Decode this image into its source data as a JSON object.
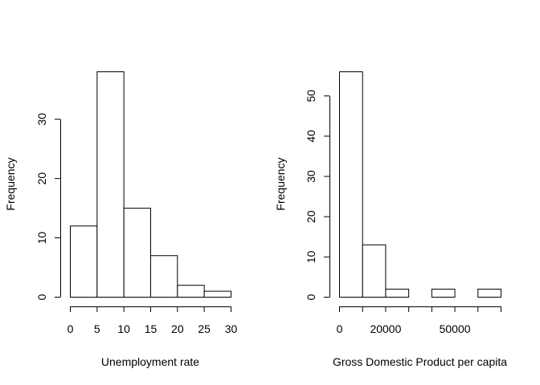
{
  "chart_data": [
    {
      "type": "bar",
      "title": "",
      "xlabel": "Unemployment rate",
      "ylabel": "Frequency",
      "bin_edges": [
        0,
        5,
        10,
        15,
        20,
        25,
        30
      ],
      "values": [
        12,
        38,
        15,
        7,
        2,
        1
      ],
      "xlim": [
        0,
        30
      ],
      "ylim": [
        0,
        38
      ],
      "x_ticks": [
        0,
        5,
        10,
        15,
        20,
        25,
        30
      ],
      "x_tick_labels": [
        "0",
        "5",
        "10",
        "15",
        "20",
        "25",
        "30"
      ],
      "y_ticks": [
        0,
        10,
        20,
        30
      ],
      "y_tick_labels": [
        "0",
        "10",
        "20",
        "30"
      ],
      "grid": false,
      "legend": "none"
    },
    {
      "type": "bar",
      "title": "",
      "xlabel": "Gross Domestic Product per capita",
      "ylabel": "Frequency",
      "bin_edges": [
        0,
        10000,
        20000,
        30000,
        40000,
        50000,
        60000,
        70000
      ],
      "values": [
        56,
        13,
        2,
        0,
        2,
        0,
        2
      ],
      "xlim": [
        0,
        70000
      ],
      "ylim": [
        0,
        56
      ],
      "x_ticks": [
        0,
        10000,
        20000,
        30000,
        40000,
        50000,
        60000,
        70000
      ],
      "x_tick_labels": [
        "0",
        "",
        "20000",
        "",
        "",
        "50000",
        "",
        ""
      ],
      "y_ticks": [
        0,
        10,
        20,
        30,
        40,
        50
      ],
      "y_tick_labels": [
        "0",
        "10",
        "20",
        "30",
        "40",
        "50"
      ],
      "grid": false,
      "legend": "none"
    }
  ]
}
